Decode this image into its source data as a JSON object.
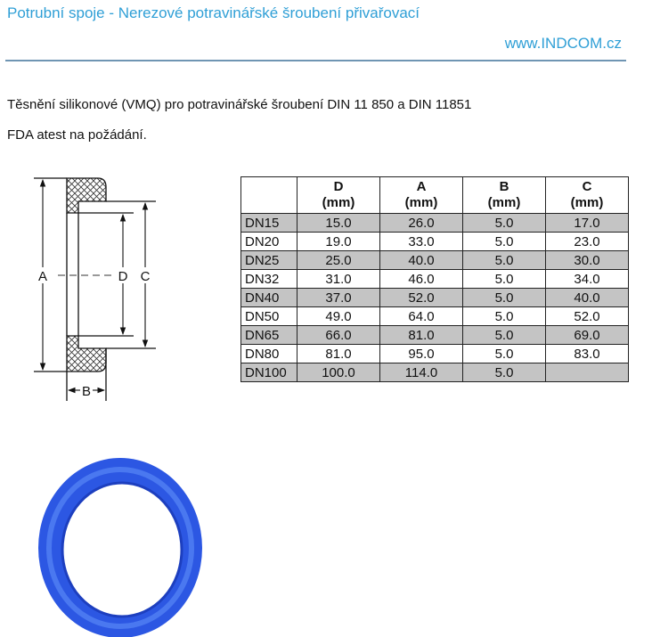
{
  "header": {
    "title": "Potrubní spoje - Nerezové potravinářské šroubení přivařovací",
    "url": "www.INDCOM.cz"
  },
  "intro": {
    "line1": "Těsnění silikonové (VMQ) pro potravinářské šroubení DIN 11 850 a DIN 11851",
    "line2": "FDA atest na požádání."
  },
  "diagram": {
    "labels": {
      "A": "A",
      "B": "B",
      "C": "C",
      "D": "D"
    }
  },
  "table": {
    "headers": [
      {
        "top": "",
        "unit": ""
      },
      {
        "top": "D",
        "unit": "(mm)"
      },
      {
        "top": "A",
        "unit": "(mm)"
      },
      {
        "top": "B",
        "unit": "(mm)"
      },
      {
        "top": "C",
        "unit": "(mm)"
      }
    ],
    "rows": [
      [
        "DN15",
        "15.0",
        "26.0",
        "5.0",
        "17.0"
      ],
      [
        "DN20",
        "19.0",
        "33.0",
        "5.0",
        "23.0"
      ],
      [
        "DN25",
        "25.0",
        "40.0",
        "5.0",
        "30.0"
      ],
      [
        "DN32",
        "31.0",
        "46.0",
        "5.0",
        "34.0"
      ],
      [
        "DN40",
        "37.0",
        "52.0",
        "5.0",
        "40.0"
      ],
      [
        "DN50",
        "49.0",
        "64.0",
        "5.0",
        "52.0"
      ],
      [
        "DN65",
        "66.0",
        "81.0",
        "5.0",
        "69.0"
      ],
      [
        "DN80",
        "81.0",
        "95.0",
        "5.0",
        "83.0"
      ],
      [
        "DN100",
        "100.0",
        "114.0",
        "5.0",
        ""
      ]
    ]
  },
  "colors": {
    "accent": "#2f9fd6",
    "rule": "#6f95b3",
    "row_shade": "#c4c4c4",
    "ring": "#2a55e0"
  }
}
